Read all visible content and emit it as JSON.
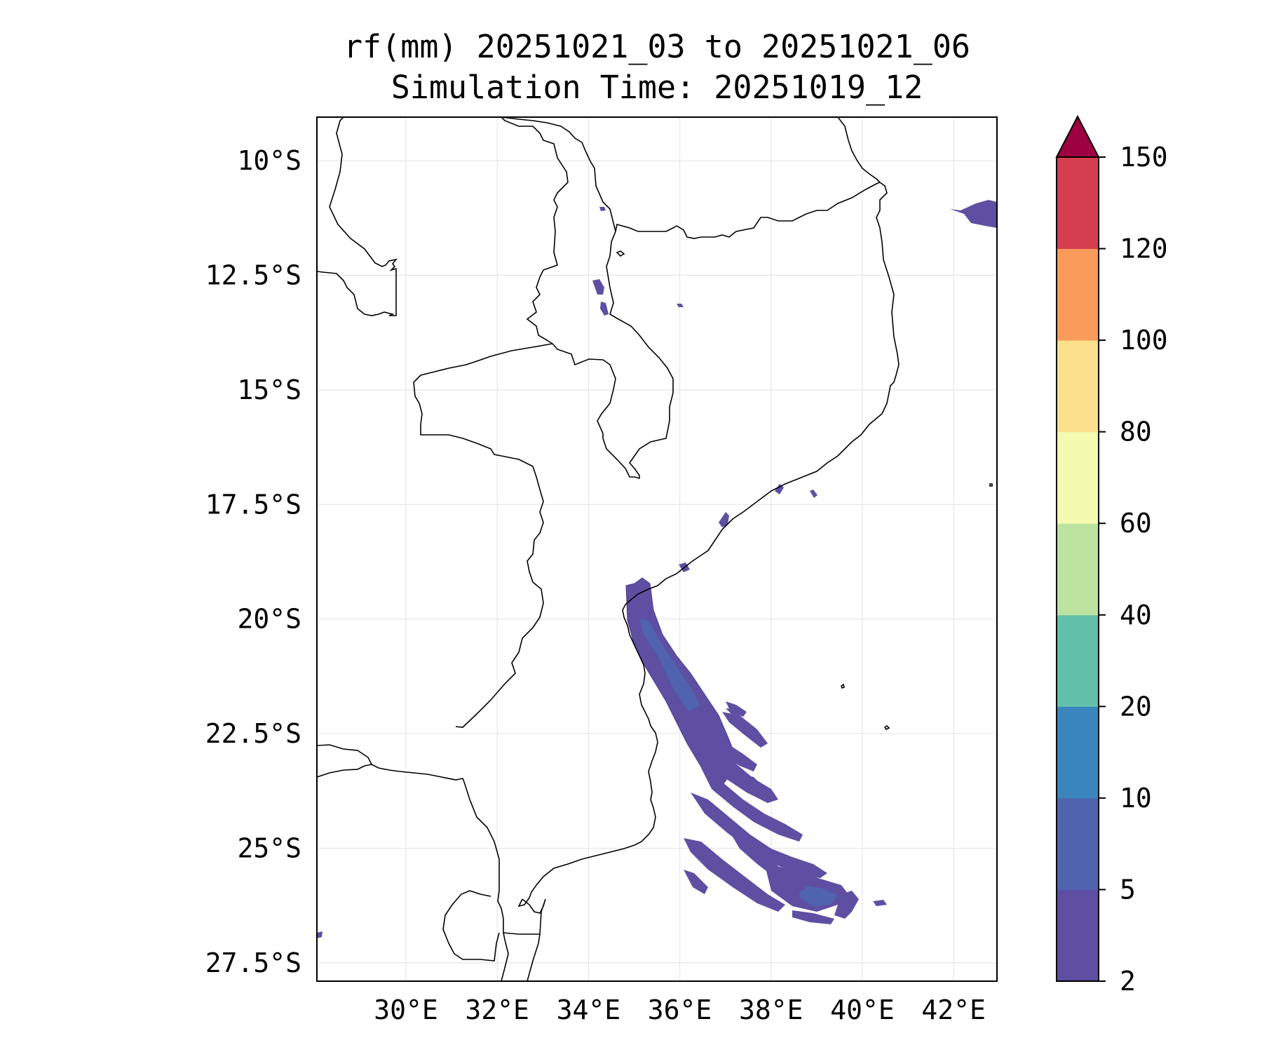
{
  "title": {
    "line1": "rf(mm) 20251021_03 to 20251021_06",
    "line2": "Simulation Time: 20251019_12"
  },
  "map": {
    "lat_labels": [
      "10°S",
      "12.5°S",
      "15°S",
      "17.5°S",
      "20°S",
      "22.5°S",
      "25°S",
      "27.5°S"
    ],
    "lon_labels": [
      "30°E",
      "32°E",
      "34°E",
      "36°E",
      "38°E",
      "40°E",
      "42°E"
    ],
    "lat_values": [
      -10,
      -12.5,
      -15,
      -17.5,
      -20,
      -22.5,
      -25,
      -27.5
    ],
    "lon_values": [
      30,
      32,
      34,
      36,
      38,
      40,
      42
    ],
    "extent": {
      "lon_min": 28.05,
      "lon_max": 42.95,
      "lat_min": -27.9,
      "lat_max": -9.05
    },
    "gridlines": true,
    "field": "rainfall accumulation (mm)"
  },
  "colorbar": {
    "levels": [
      "2",
      "5",
      "10",
      "20",
      "40",
      "60",
      "80",
      "100",
      "120",
      "150"
    ],
    "colors": [
      "#5e4fa2",
      "#4f63ae",
      "#3a85bc",
      "#62bfa9",
      "#bce4a0",
      "#f4fab0",
      "#fde08b",
      "#f99c5b",
      "#d53e4f",
      "#9e0142"
    ],
    "extend": "max"
  }
}
